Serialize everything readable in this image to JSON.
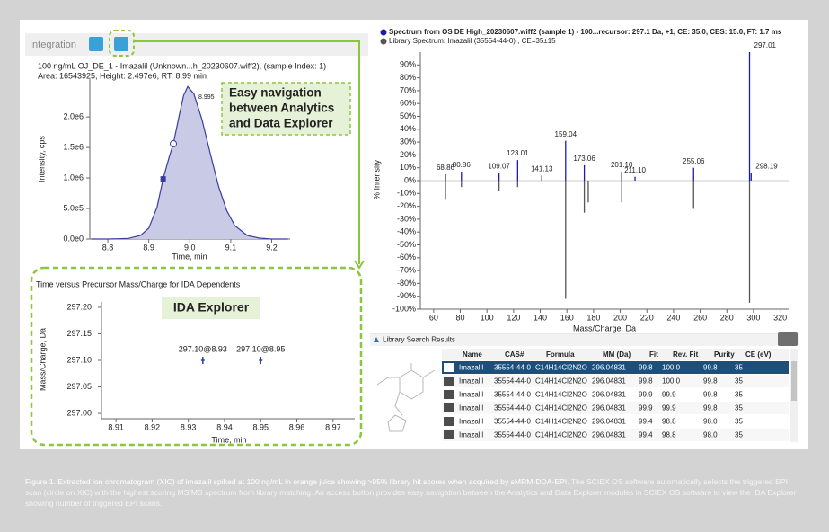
{
  "toolbar": {
    "label": "Integration"
  },
  "callouts": {
    "navigation": [
      "Easy navigation",
      "between Analytics",
      "and Data Explorer"
    ],
    "ida": "IDA Explorer"
  },
  "chart_data": [
    {
      "type": "line",
      "title": "100 ng/mL OJ_DE_1 - Imazalil (Unknown...h_20230607.wiff2), (sample Index: 1)",
      "subtitle": "Area: 16543925, Height: 2.497e6, RT: 8.99 min",
      "xlabel": "Time, min",
      "ylabel": "Intensity, cps",
      "x": [
        8.76,
        8.8,
        8.85,
        8.88,
        8.9,
        8.92,
        8.935,
        8.95,
        8.96,
        8.975,
        8.985,
        8.995,
        9.01,
        9.03,
        9.05,
        9.07,
        9.09,
        9.11,
        9.14,
        9.17,
        9.2,
        9.24
      ],
      "values": [
        0,
        0,
        10000,
        60000,
        180000,
        520000,
        985000,
        1350000,
        1560000,
        2050000,
        2350000,
        2497000,
        2380000,
        1950000,
        1400000,
        870000,
        470000,
        220000,
        60000,
        15000,
        0,
        0
      ],
      "color": "#3b3b9e",
      "fill": "#c8cae6",
      "markers": {
        "x": [
          8.935,
          8.96
        ],
        "values": [
          985000,
          1560000
        ],
        "shapes": [
          "square",
          "circle"
        ]
      },
      "annotation": {
        "x": 8.995,
        "y": 2497000,
        "text": "8.995"
      },
      "xlim": [
        8.756,
        9.245
      ],
      "xticks": [
        8.8,
        8.9,
        {
          "value": 9,
          "label": "9.0"
        },
        9.1,
        9.2
      ],
      "ylim": [
        0,
        2620000
      ],
      "yticks": [
        {
          "value": 0,
          "label": "0.0e0"
        },
        {
          "value": 500000,
          "label": "5.0e5"
        },
        {
          "value": 1000000,
          "label": "1.0e6"
        },
        {
          "value": 1500000,
          "label": "1.5e6"
        },
        {
          "value": 2000000,
          "label": "2.0e6"
        }
      ]
    },
    {
      "type": "scatter",
      "title": "Time versus Precursor Mass/Charge for IDA Dependents",
      "xlabel": "Time, min",
      "ylabel": "Mass/Charge, Da",
      "x": [
        8.934,
        8.95
      ],
      "values": [
        297.1,
        297.1
      ],
      "value_labels": [
        "297.10@8.93",
        "297.10@8.95"
      ],
      "color": "#2a3fa8",
      "xlim": [
        8.906,
        8.976
      ],
      "xticks": [
        8.91,
        8.92,
        8.93,
        8.94,
        8.95,
        8.96,
        8.97
      ],
      "ylim": [
        296.99,
        297.21
      ],
      "yticks": [
        {
          "value": 297,
          "label": "297.00"
        },
        {
          "value": 297.05,
          "label": "297.05"
        },
        {
          "value": 297.1,
          "label": "297.10"
        },
        {
          "value": 297.15,
          "label": "297.15"
        },
        {
          "value": 297.2,
          "label": "297.20"
        }
      ]
    },
    {
      "type": "stem",
      "xlabel": "Mass/Charge, Da",
      "ylabel": "% Intensity",
      "series": [
        {
          "name": "Spectrum from OS DE High_20230607.wiff2 (sample 1) - 100...recursor: 297.1 Da, +1, CE: 35.0, CES: 15.0, FT: 1.7 ms",
          "color": "#1c1caa",
          "x": [
            68.86,
            80.86,
            109.07,
            123.01,
            141.13,
            159.04,
            173.06,
            201.1,
            211.1,
            255.06,
            297.01,
            298.19
          ],
          "values": [
            5,
            7,
            6,
            16,
            4,
            31,
            12,
            7,
            3,
            10,
            100,
            6
          ],
          "labels": [
            "68.86",
            "80.86",
            "109.07",
            "123.01",
            "141.13",
            "159.04",
            "173.06",
            "201.10",
            "211.10",
            "255.06",
            "297.01",
            "298.19"
          ]
        },
        {
          "name": "Library Spectrum: Imazalil (35554-44-0) , CE=35±15",
          "color": "#555555",
          "x": [
            68.86,
            80.86,
            109.07,
            123.01,
            159.04,
            173.06,
            176.0,
            201.1,
            255.06,
            297.01
          ],
          "values": [
            -15,
            -5,
            -8,
            -5,
            -92,
            -25,
            -17,
            -17,
            -22,
            -95
          ]
        }
      ],
      "xlim": [
        50,
        327
      ],
      "xticks": [
        60,
        80,
        100,
        120,
        140,
        160,
        180,
        200,
        220,
        240,
        260,
        280,
        300,
        320
      ],
      "ylim": [
        -100,
        100
      ],
      "yticks": [
        {
          "value": 90,
          "label": "90%"
        },
        {
          "value": 80,
          "label": "80%"
        },
        {
          "value": 70,
          "label": "70%"
        },
        {
          "value": 60,
          "label": "60%"
        },
        {
          "value": 50,
          "label": "50%"
        },
        {
          "value": 40,
          "label": "40%"
        },
        {
          "value": 30,
          "label": "30%"
        },
        {
          "value": 20,
          "label": "20%"
        },
        {
          "value": 10,
          "label": "10%"
        },
        {
          "value": 0,
          "label": "0%"
        },
        {
          "value": -10,
          "label": "-10%"
        },
        {
          "value": -20,
          "label": "-20%"
        },
        {
          "value": -30,
          "label": "-30%"
        },
        {
          "value": -40,
          "label": "-40%"
        },
        {
          "value": -50,
          "label": "-50%"
        },
        {
          "value": -60,
          "label": "-60%"
        },
        {
          "value": -70,
          "label": "-70%"
        },
        {
          "value": -80,
          "label": "-80%"
        },
        {
          "value": -90,
          "label": "-90%"
        },
        {
          "value": -100,
          "label": "-100%"
        }
      ]
    }
  ],
  "table": {
    "title": "Library Search Results",
    "columns": [
      "Name",
      "CAS#",
      "Formula",
      "MM (Da)",
      "Fit",
      "Rev. Fit",
      "Purity",
      "CE (eV)"
    ],
    "selected_row": 0,
    "rows": [
      [
        "Imazalil",
        "35554-44-0",
        "C14H14Cl2N2O",
        "296.04831",
        "99.8",
        "100.0",
        "99.8",
        "35"
      ],
      [
        "Imazalil",
        "35554-44-0",
        "C14H14Cl2N2O",
        "296.04831",
        "99.8",
        "100.0",
        "99.8",
        "35"
      ],
      [
        "Imazalil",
        "35554-44-0",
        "C14H14Cl2N2O",
        "296.04831",
        "99.9",
        "99.9",
        "99.8",
        "35"
      ],
      [
        "Imazalil",
        "35554-44-0",
        "C14H14Cl2N2O",
        "296.04831",
        "99.9",
        "99.9",
        "99.8",
        "35"
      ],
      [
        "Imazalil",
        "35554-44-0",
        "C14H14Cl2N2O",
        "296.04831",
        "99.4",
        "98.8",
        "98.0",
        "35"
      ],
      [
        "Imazalil",
        "35554-44-0",
        "C14H14Cl2N2O",
        "296.04831",
        "99.4",
        "98.8",
        "98.0",
        "35"
      ]
    ]
  },
  "caption": {
    "lead": "Figure 1. Extracted ion chromatogram (XIC) of imazalil spiked at 100 ng/mL in orange juice showing >95% library hit scores when acquired by sMRM-DDA-EPI.",
    "body": " The SCIEX OS software automatically selects the triggered EPI scan (circle on XIC) with the highest scoring MS/MS spectrum from library matching. An access button provides easy navigation between the Analytics and Data Explorer modules in SCIEX OS software to view the IDA Explorer showing number of triggered EPI scans."
  }
}
